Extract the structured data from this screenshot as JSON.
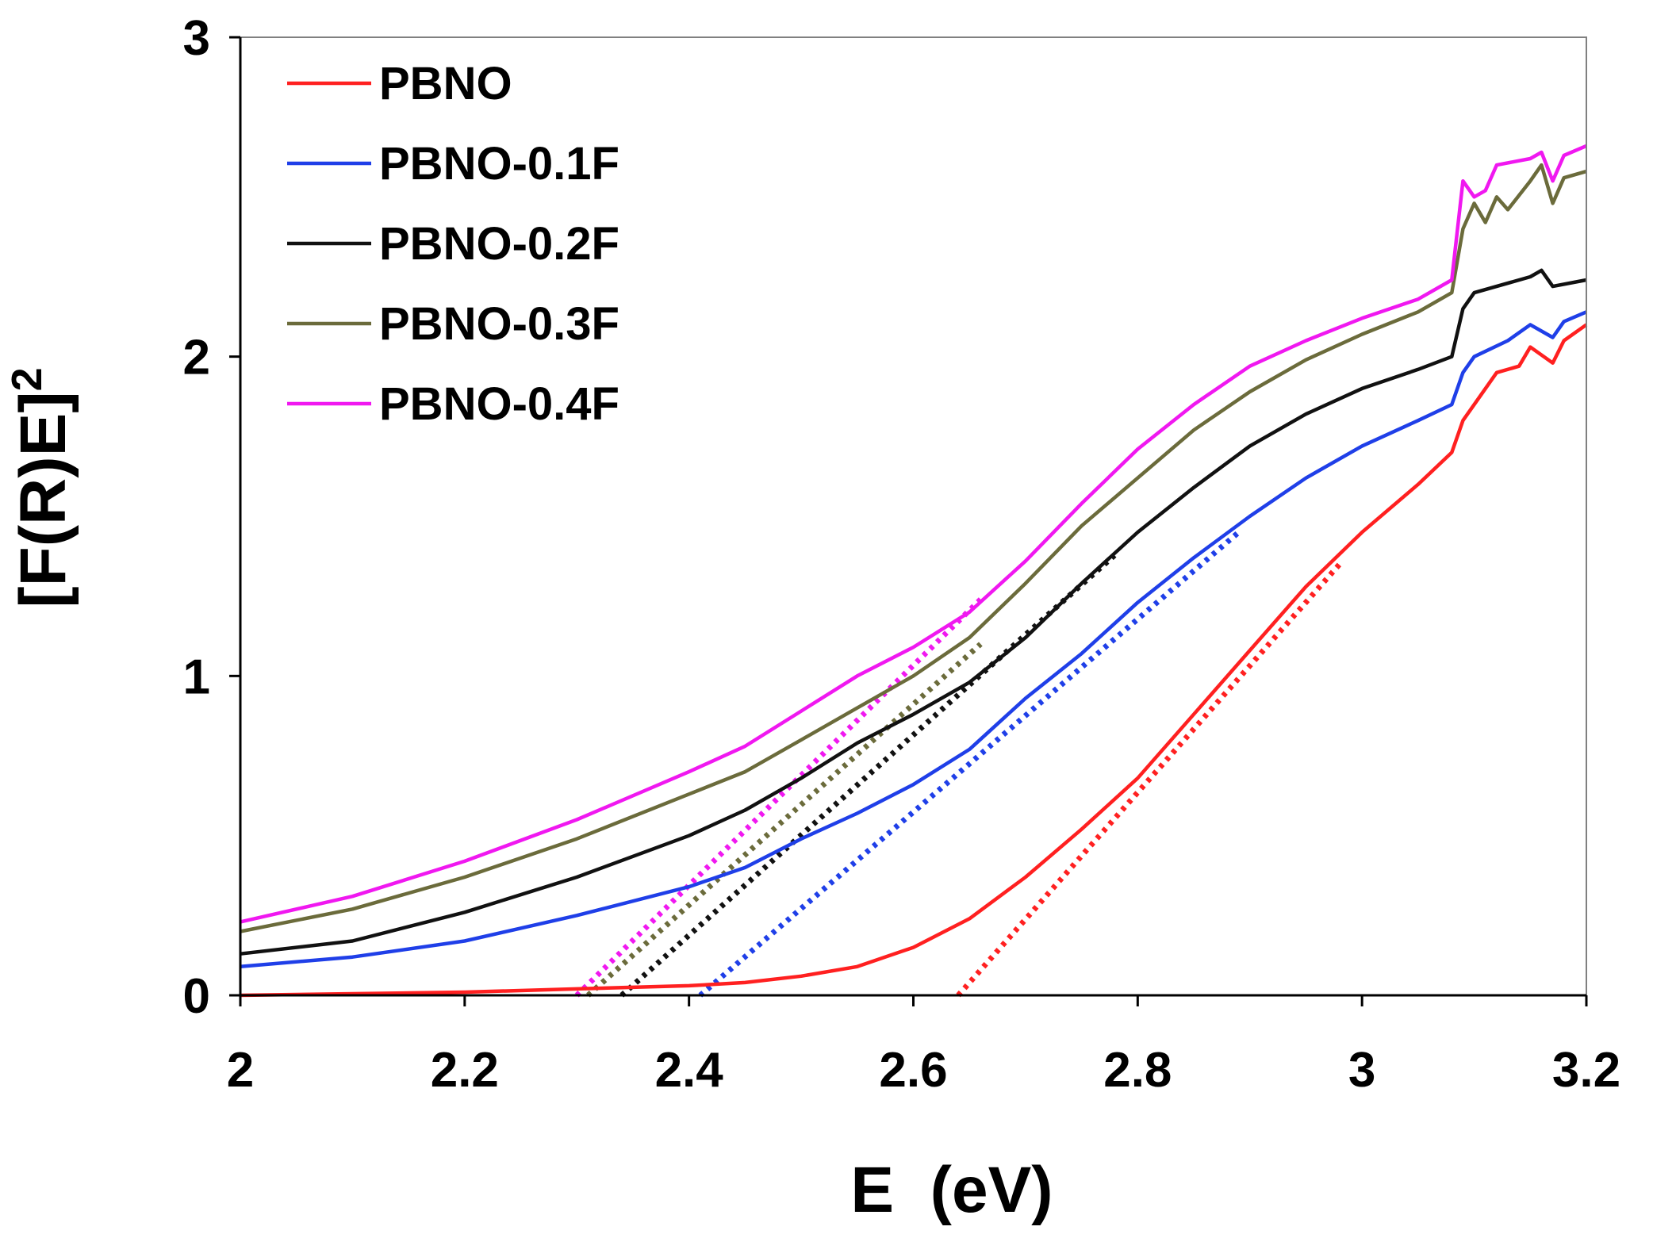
{
  "chart_data": {
    "type": "line",
    "title": "",
    "xlabel": "E  (eV)",
    "ylabel": "[F(R)E]",
    "ylabel_superscript": "2",
    "xlim": [
      2,
      3.2
    ],
    "ylim": [
      0,
      3
    ],
    "xticks": [
      2,
      2.2,
      2.4,
      2.6,
      2.8,
      3,
      3.2
    ],
    "xtick_labels": [
      "2",
      "2.2",
      "2.4",
      "2.6",
      "2.8",
      "3",
      "3.2"
    ],
    "yticks": [
      0,
      1,
      2,
      3
    ],
    "ytick_labels": [
      "0",
      "1",
      "2",
      "3"
    ],
    "grid": false,
    "legend_position": "top-left",
    "series": [
      {
        "name": "PBNO",
        "color": "#ff2020",
        "points": [
          [
            2.0,
            0.0
          ],
          [
            2.1,
            0.005
          ],
          [
            2.2,
            0.01
          ],
          [
            2.3,
            0.02
          ],
          [
            2.4,
            0.03
          ],
          [
            2.45,
            0.04
          ],
          [
            2.5,
            0.06
          ],
          [
            2.55,
            0.09
          ],
          [
            2.6,
            0.15
          ],
          [
            2.65,
            0.24
          ],
          [
            2.7,
            0.37
          ],
          [
            2.75,
            0.52
          ],
          [
            2.8,
            0.68
          ],
          [
            2.85,
            0.88
          ],
          [
            2.9,
            1.08
          ],
          [
            2.95,
            1.28
          ],
          [
            3.0,
            1.45
          ],
          [
            3.05,
            1.6
          ],
          [
            3.08,
            1.7
          ],
          [
            3.09,
            1.8
          ],
          [
            3.1,
            1.85
          ],
          [
            3.12,
            1.95
          ],
          [
            3.14,
            1.97
          ],
          [
            3.15,
            2.03
          ],
          [
            3.17,
            1.98
          ],
          [
            3.18,
            2.05
          ],
          [
            3.2,
            2.1
          ]
        ],
        "tangent": [
          [
            2.64,
            0.0
          ],
          [
            2.98,
            1.35
          ]
        ]
      },
      {
        "name": "PBNO-0.1F",
        "color": "#1f3fe8",
        "points": [
          [
            2.0,
            0.09
          ],
          [
            2.1,
            0.12
          ],
          [
            2.2,
            0.17
          ],
          [
            2.3,
            0.25
          ],
          [
            2.4,
            0.34
          ],
          [
            2.45,
            0.4
          ],
          [
            2.5,
            0.49
          ],
          [
            2.55,
            0.57
          ],
          [
            2.6,
            0.66
          ],
          [
            2.65,
            0.77
          ],
          [
            2.7,
            0.93
          ],
          [
            2.75,
            1.07
          ],
          [
            2.8,
            1.23
          ],
          [
            2.85,
            1.37
          ],
          [
            2.9,
            1.5
          ],
          [
            2.95,
            1.62
          ],
          [
            3.0,
            1.72
          ],
          [
            3.05,
            1.8
          ],
          [
            3.08,
            1.85
          ],
          [
            3.09,
            1.95
          ],
          [
            3.1,
            2.0
          ],
          [
            3.13,
            2.05
          ],
          [
            3.15,
            2.1
          ],
          [
            3.17,
            2.06
          ],
          [
            3.18,
            2.11
          ],
          [
            3.2,
            2.14
          ]
        ],
        "tangent": [
          [
            2.41,
            0.0
          ],
          [
            2.89,
            1.45
          ]
        ]
      },
      {
        "name": "PBNO-0.2F",
        "color": "#111111",
        "points": [
          [
            2.0,
            0.13
          ],
          [
            2.1,
            0.17
          ],
          [
            2.2,
            0.26
          ],
          [
            2.3,
            0.37
          ],
          [
            2.4,
            0.5
          ],
          [
            2.45,
            0.58
          ],
          [
            2.5,
            0.68
          ],
          [
            2.55,
            0.79
          ],
          [
            2.6,
            0.88
          ],
          [
            2.65,
            0.98
          ],
          [
            2.7,
            1.12
          ],
          [
            2.75,
            1.29
          ],
          [
            2.8,
            1.45
          ],
          [
            2.85,
            1.59
          ],
          [
            2.9,
            1.72
          ],
          [
            2.95,
            1.82
          ],
          [
            3.0,
            1.9
          ],
          [
            3.05,
            1.96
          ],
          [
            3.08,
            2.0
          ],
          [
            3.09,
            2.15
          ],
          [
            3.1,
            2.2
          ],
          [
            3.15,
            2.25
          ],
          [
            3.16,
            2.27
          ],
          [
            3.17,
            2.22
          ],
          [
            3.2,
            2.24
          ]
        ],
        "tangent": [
          [
            2.34,
            0.0
          ],
          [
            2.78,
            1.38
          ]
        ]
      },
      {
        "name": "PBNO-0.3F",
        "color": "#6b6b3b",
        "points": [
          [
            2.0,
            0.2
          ],
          [
            2.1,
            0.27
          ],
          [
            2.2,
            0.37
          ],
          [
            2.3,
            0.49
          ],
          [
            2.4,
            0.63
          ],
          [
            2.45,
            0.7
          ],
          [
            2.5,
            0.8
          ],
          [
            2.55,
            0.9
          ],
          [
            2.6,
            1.0
          ],
          [
            2.65,
            1.12
          ],
          [
            2.7,
            1.29
          ],
          [
            2.75,
            1.47
          ],
          [
            2.8,
            1.62
          ],
          [
            2.85,
            1.77
          ],
          [
            2.9,
            1.89
          ],
          [
            2.95,
            1.99
          ],
          [
            3.0,
            2.07
          ],
          [
            3.05,
            2.14
          ],
          [
            3.08,
            2.2
          ],
          [
            3.09,
            2.4
          ],
          [
            3.1,
            2.48
          ],
          [
            3.11,
            2.42
          ],
          [
            3.12,
            2.5
          ],
          [
            3.13,
            2.46
          ],
          [
            3.15,
            2.55
          ],
          [
            3.16,
            2.6
          ],
          [
            3.17,
            2.48
          ],
          [
            3.18,
            2.56
          ],
          [
            3.2,
            2.58
          ]
        ],
        "tangent": [
          [
            2.31,
            0.0
          ],
          [
            2.66,
            1.1
          ]
        ]
      },
      {
        "name": "PBNO-0.4F",
        "color": "#f018f0",
        "points": [
          [
            2.0,
            0.23
          ],
          [
            2.1,
            0.31
          ],
          [
            2.2,
            0.42
          ],
          [
            2.3,
            0.55
          ],
          [
            2.4,
            0.7
          ],
          [
            2.45,
            0.78
          ],
          [
            2.5,
            0.89
          ],
          [
            2.55,
            1.0
          ],
          [
            2.6,
            1.09
          ],
          [
            2.65,
            1.2
          ],
          [
            2.7,
            1.36
          ],
          [
            2.75,
            1.54
          ],
          [
            2.8,
            1.71
          ],
          [
            2.85,
            1.85
          ],
          [
            2.9,
            1.97
          ],
          [
            2.95,
            2.05
          ],
          [
            3.0,
            2.12
          ],
          [
            3.05,
            2.18
          ],
          [
            3.08,
            2.24
          ],
          [
            3.09,
            2.55
          ],
          [
            3.1,
            2.5
          ],
          [
            3.11,
            2.52
          ],
          [
            3.12,
            2.6
          ],
          [
            3.15,
            2.62
          ],
          [
            3.16,
            2.64
          ],
          [
            3.17,
            2.55
          ],
          [
            3.18,
            2.63
          ],
          [
            3.2,
            2.66
          ]
        ],
        "tangent": [
          [
            2.3,
            0.0
          ],
          [
            2.66,
            1.24
          ]
        ]
      }
    ]
  }
}
